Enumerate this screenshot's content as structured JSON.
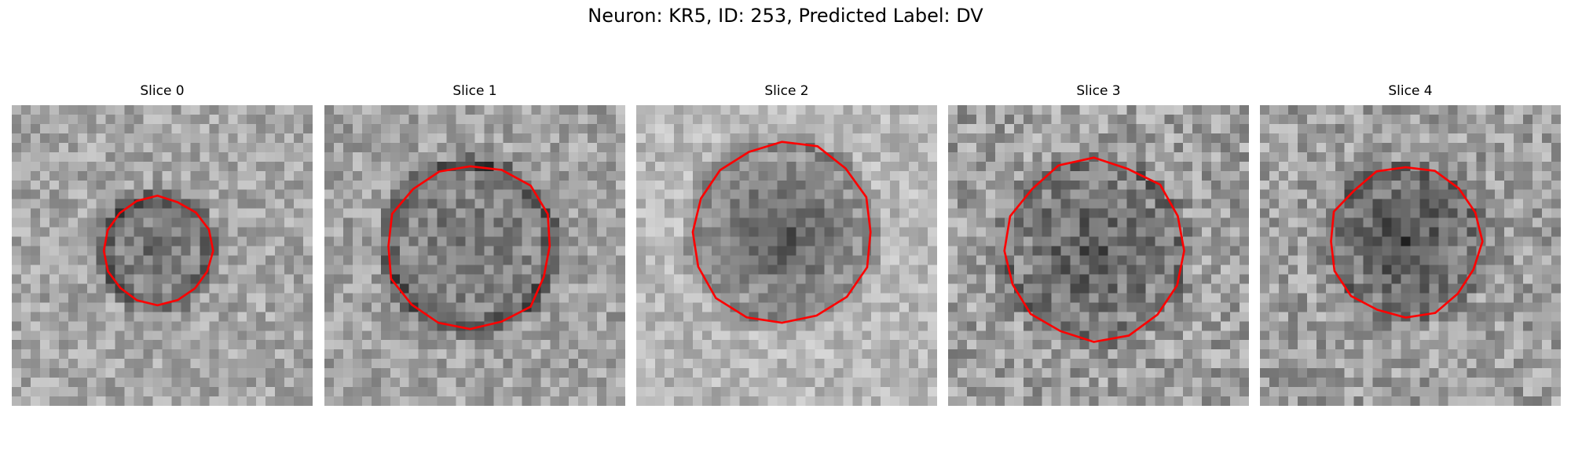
{
  "figure": {
    "title": "Neuron: KR5, ID: 253, Predicted Label: DV"
  },
  "panels": [
    {
      "title": "Slice 0"
    },
    {
      "title": "Slice 1"
    },
    {
      "title": "Slice 2"
    },
    {
      "title": "Slice 3"
    },
    {
      "title": "Slice 4"
    }
  ],
  "colors": {
    "contour": "#ff0000",
    "background": "#ffffff"
  }
}
